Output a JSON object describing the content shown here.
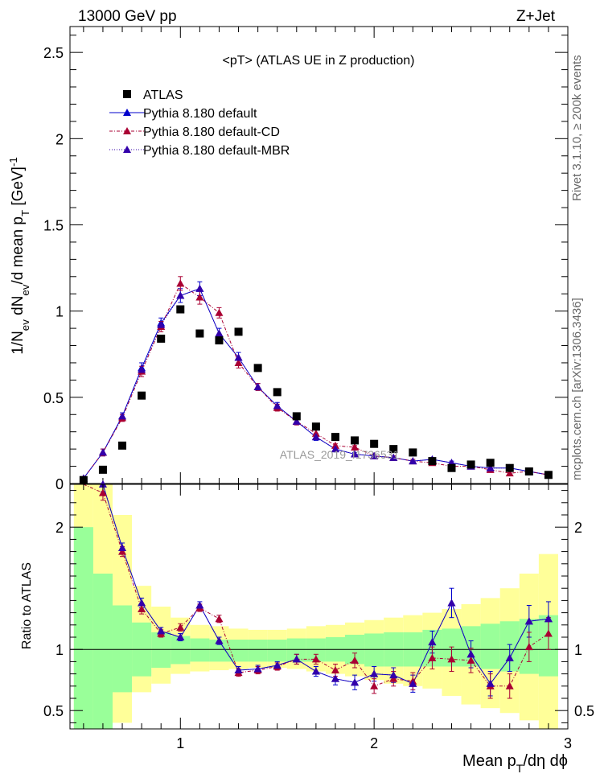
{
  "header": {
    "left": "13000 GeV pp",
    "right": "Z+Jet"
  },
  "side": {
    "rivet": "Rivet 3.1.10, ≥ 200k events",
    "mcplots": "mcplots.cern.ch [arXiv:1306.3436]"
  },
  "plot_title": "<pT>  (ATLAS UE in Z production)",
  "watermark": "ATLAS_2019_I1736531",
  "ylabel_main_parts": [
    "1/N",
    "ev",
    " dN",
    "ev",
    "/d mean p",
    "T",
    " [GeV]",
    "-1"
  ],
  "ylabel_ratio": "Ratio to ATLAS",
  "xlabel_parts": [
    "Mean p",
    "T",
    "/dη dϕ"
  ],
  "colors": {
    "data": "#000000",
    "default": "#0000cc",
    "cd": "#aa0033",
    "mbr": "#3300aa",
    "band_inner": "#99ff99",
    "band_outer": "#ffff99"
  },
  "chart_data": [
    {
      "type": "scatter",
      "name": "main",
      "xlim": [
        0.43,
        3.0
      ],
      "ylim": [
        0,
        2.65
      ],
      "yticks": [
        0.5,
        1,
        1.5,
        2,
        2.5
      ],
      "ytick_labels": [
        "0.5",
        "1",
        "1.5",
        "2",
        "2.5"
      ],
      "xticks": [
        1,
        2,
        3
      ],
      "xtick_labels": [
        "1",
        "2",
        "3"
      ],
      "legend": {
        "placement": "top-left",
        "entries": [
          "ATLAS",
          "Pythia 8.180 default",
          "Pythia 8.180 default-CD",
          "Pythia 8.180 default-MBR"
        ]
      },
      "x": [
        0.5,
        0.6,
        0.7,
        0.8,
        0.9,
        1.0,
        1.1,
        1.2,
        1.3,
        1.4,
        1.5,
        1.6,
        1.7,
        1.8,
        1.9,
        2.0,
        2.1,
        2.2,
        2.3,
        2.4,
        2.5,
        2.6,
        2.7,
        2.8,
        2.9
      ],
      "series": [
        {
          "name": "ATLAS",
          "values": [
            0.02,
            0.08,
            0.22,
            0.51,
            0.84,
            1.01,
            0.87,
            0.83,
            0.88,
            0.67,
            0.53,
            0.39,
            0.33,
            0.27,
            0.25,
            0.23,
            0.2,
            0.18,
            0.13,
            0.09,
            0.11,
            0.12,
            0.09,
            0.07,
            0.05
          ]
        },
        {
          "name": "Pythia 8.180 default",
          "values": [
            0.03,
            0.18,
            0.39,
            0.67,
            0.93,
            1.09,
            1.13,
            0.87,
            0.73,
            0.56,
            0.45,
            0.36,
            0.27,
            0.2,
            0.17,
            0.16,
            0.15,
            0.13,
            0.14,
            0.12,
            0.1,
            0.09,
            0.09,
            0.07,
            0.05
          ]
        },
        {
          "name": "Pythia 8.180 default-CD",
          "values": [
            0.03,
            0.18,
            0.38,
            0.65,
            0.91,
            1.16,
            1.08,
            0.99,
            0.7,
            0.56,
            0.44,
            0.36,
            0.29,
            0.22,
            0.21,
            0.16,
            0.15,
            0.13,
            0.12,
            0.1,
            0.1,
            0.08,
            0.06,
            0.07,
            0.05
          ]
        },
        {
          "name": "Pythia 8.180 default-MBR",
          "values": [
            0.03,
            0.18,
            0.39,
            0.66,
            0.92,
            1.09,
            1.13,
            0.87,
            0.73,
            0.56,
            0.45,
            0.36,
            0.27,
            0.2,
            0.17,
            0.16,
            0.15,
            0.13,
            0.14,
            0.12,
            0.1,
            0.09,
            0.09,
            0.07,
            0.05
          ]
        }
      ],
      "errors": {
        "Pythia 8.180 default": [
          0.01,
          0.02,
          0.02,
          0.03,
          0.03,
          0.04,
          0.04,
          0.03,
          0.03,
          0.02,
          0.02,
          0.02,
          0.02,
          0.01,
          0.01,
          0.01,
          0.01,
          0.01,
          0.01,
          0.01,
          0.01,
          0.01,
          0.01,
          0.01,
          0.01
        ],
        "Pythia 8.180 default-CD": [
          0.01,
          0.02,
          0.02,
          0.03,
          0.03,
          0.04,
          0.04,
          0.03,
          0.03,
          0.02,
          0.02,
          0.02,
          0.02,
          0.01,
          0.01,
          0.01,
          0.01,
          0.01,
          0.01,
          0.01,
          0.01,
          0.01,
          0.01,
          0.01,
          0.01
        ]
      }
    },
    {
      "type": "line",
      "name": "ratio",
      "xlim": [
        0.43,
        3.0
      ],
      "ylim": [
        0.35,
        2.35
      ],
      "yticks": [
        0.5,
        1,
        2
      ],
      "ytick_labels": [
        "0.5",
        "1",
        "2"
      ],
      "xticks": [
        1,
        2,
        3
      ],
      "xtick_labels": [
        "1",
        "2",
        "3"
      ],
      "reference_line": 1,
      "bin_edges": [
        0.45,
        0.55,
        0.65,
        0.75,
        0.85,
        0.95,
        1.05,
        1.15,
        1.25,
        1.35,
        1.45,
        1.55,
        1.65,
        1.75,
        1.85,
        1.95,
        2.05,
        2.15,
        2.25,
        2.35,
        2.45,
        2.55,
        2.65,
        2.75,
        2.85,
        2.95
      ],
      "band_inner": {
        "low": [
          0.0,
          0.35,
          0.65,
          0.78,
          0.85,
          0.88,
          0.9,
          0.9,
          0.9,
          0.9,
          0.9,
          0.9,
          0.9,
          0.9,
          0.88,
          0.86,
          0.86,
          0.86,
          0.86,
          0.86,
          0.86,
          0.84,
          0.82,
          0.8,
          0.78
        ],
        "high": [
          2.0,
          1.62,
          1.36,
          1.22,
          1.14,
          1.11,
          1.09,
          1.08,
          1.08,
          1.08,
          1.08,
          1.09,
          1.09,
          1.1,
          1.12,
          1.13,
          1.14,
          1.14,
          1.16,
          1.17,
          1.19,
          1.21,
          1.23,
          1.25,
          1.28
        ]
      },
      "band_outer": {
        "low": [
          0.0,
          0.0,
          0.4,
          0.65,
          0.72,
          0.8,
          0.82,
          0.83,
          0.84,
          0.85,
          0.85,
          0.84,
          0.82,
          0.8,
          0.78,
          0.75,
          0.72,
          0.7,
          0.68,
          0.62,
          0.55,
          0.52,
          0.48,
          0.42,
          0.35
        ],
        "high": [
          2.35,
          2.35,
          2.1,
          1.52,
          1.35,
          1.26,
          1.2,
          1.19,
          1.17,
          1.16,
          1.16,
          1.17,
          1.19,
          1.2,
          1.22,
          1.24,
          1.26,
          1.28,
          1.3,
          1.33,
          1.37,
          1.42,
          1.5,
          1.62,
          1.78
        ]
      },
      "x": [
        0.5,
        0.6,
        0.7,
        0.8,
        0.9,
        1.0,
        1.1,
        1.2,
        1.3,
        1.4,
        1.5,
        1.6,
        1.7,
        1.8,
        1.9,
        2.0,
        2.1,
        2.2,
        2.3,
        2.4,
        2.5,
        2.6,
        2.7,
        2.8,
        2.9
      ],
      "series": [
        {
          "name": "Pythia 8.180 default",
          "values": [
            2.6,
            2.35,
            1.83,
            1.38,
            1.15,
            1.1,
            1.36,
            1.07,
            0.83,
            0.84,
            0.87,
            0.92,
            0.82,
            0.76,
            0.73,
            0.8,
            0.79,
            0.72,
            1.06,
            1.38,
            0.96,
            0.72,
            0.93,
            1.23,
            1.25
          ]
        },
        {
          "name": "Pythia 8.180 default-CD",
          "values": [
            2.6,
            2.28,
            1.8,
            1.33,
            1.13,
            1.18,
            1.34,
            1.25,
            0.81,
            0.83,
            0.86,
            0.92,
            0.92,
            0.83,
            0.91,
            0.7,
            0.76,
            0.74,
            0.93,
            0.92,
            0.91,
            0.7,
            0.7,
            1.02,
            1.13
          ]
        },
        {
          "name": "Pythia 8.180 default-MBR",
          "values": [
            2.6,
            2.35,
            1.83,
            1.38,
            1.15,
            1.1,
            1.36,
            1.07,
            0.83,
            0.84,
            0.87,
            0.92,
            0.82,
            0.76,
            0.73,
            0.8,
            0.79,
            0.72,
            1.06,
            1.38,
            0.96,
            0.72,
            0.93,
            1.23,
            1.25
          ]
        }
      ],
      "errors": {
        "Pythia 8.180 default": [
          0.1,
          0.06,
          0.04,
          0.04,
          0.03,
          0.03,
          0.03,
          0.03,
          0.03,
          0.03,
          0.03,
          0.04,
          0.04,
          0.05,
          0.06,
          0.06,
          0.06,
          0.07,
          0.09,
          0.12,
          0.11,
          0.1,
          0.11,
          0.13,
          0.14
        ],
        "Pythia 8.180 default-CD": [
          0.1,
          0.06,
          0.04,
          0.04,
          0.03,
          0.03,
          0.03,
          0.03,
          0.03,
          0.03,
          0.03,
          0.04,
          0.04,
          0.05,
          0.06,
          0.06,
          0.06,
          0.07,
          0.09,
          0.1,
          0.1,
          0.1,
          0.1,
          0.12,
          0.13
        ]
      }
    }
  ]
}
